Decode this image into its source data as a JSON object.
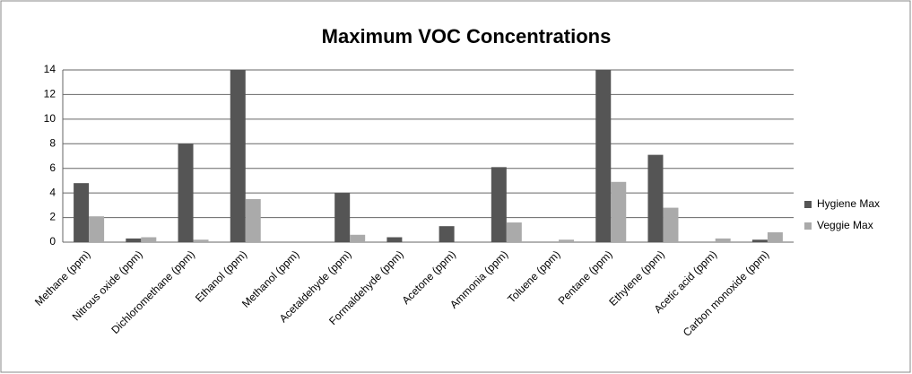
{
  "chart_data": {
    "type": "bar",
    "title": "Maximum  VOC Concentrations",
    "categories": [
      "Methane (ppm)",
      "Nitrous oxide (ppm)",
      "Dichloromethane (ppm)",
      "Ethanol (ppm)",
      "Methanol (ppm)",
      "Acetaldehyde (ppm)",
      "Formaldehyde (ppm)",
      "Acetone (ppm)",
      "Ammonia (ppm)",
      "Toluene (ppm)",
      "Pentane (ppm)",
      "Ethylene (ppm)",
      "Acetic acid (ppm)",
      "Carbon monoxide (ppm)"
    ],
    "series": [
      {
        "name": "Hygiene Max",
        "color": "#555555",
        "values": [
          4.8,
          0.3,
          8.0,
          14,
          0,
          4.0,
          0.4,
          1.3,
          6.1,
          0,
          14,
          7.1,
          0,
          0.2
        ]
      },
      {
        "name": "Veggie Max",
        "color": "#aaaaaa",
        "values": [
          2.1,
          0.4,
          0.2,
          3.5,
          0,
          0.6,
          0,
          0,
          1.6,
          0.2,
          4.9,
          2.8,
          0.3,
          0.8
        ]
      }
    ],
    "ylim": [
      0,
      14
    ],
    "yticks": [
      0,
      2,
      4,
      6,
      8,
      10,
      12,
      14
    ],
    "grid": true,
    "legend": "right"
  }
}
